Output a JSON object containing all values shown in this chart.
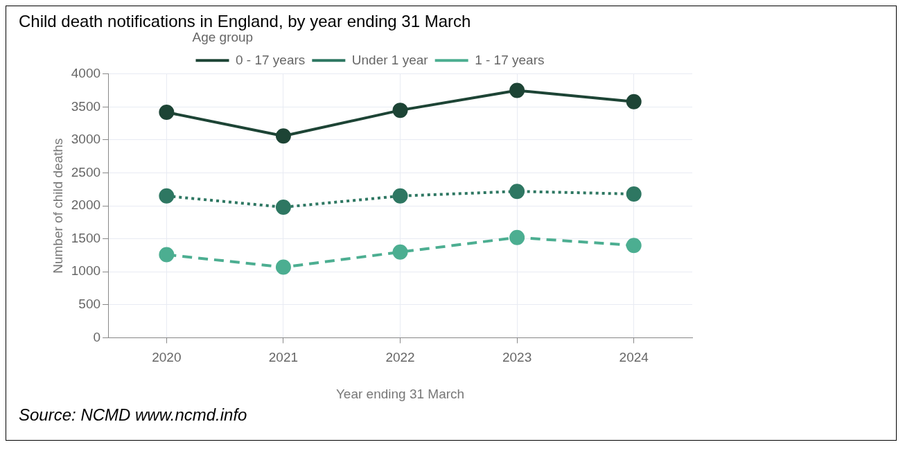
{
  "chart_data": {
    "type": "line",
    "title": "Child death notifications in England, by year ending 31 March",
    "xlabel": "Year ending 31 March",
    "ylabel": "Number of child deaths",
    "legend_title": "Age group",
    "categories": [
      "2020",
      "2021",
      "2022",
      "2023",
      "2024"
    ],
    "series": [
      {
        "name": "0 - 17 years",
        "color": "#1d4435",
        "line_style": "solid",
        "values": [
          3420,
          3060,
          3450,
          3750,
          3580
        ]
      },
      {
        "name": "Under 1 year",
        "color": "#2e7762",
        "line_style": "dotted",
        "values": [
          2150,
          1980,
          2150,
          2220,
          2180
        ]
      },
      {
        "name": "1 - 17 years",
        "color": "#4cae91",
        "line_style": "dashed",
        "values": [
          1260,
          1070,
          1300,
          1520,
          1400
        ]
      }
    ],
    "ylim": [
      0,
      4000
    ],
    "yticks": [
      0,
      500,
      1000,
      1500,
      2000,
      2500,
      3000,
      3500,
      4000
    ],
    "grid": true,
    "legend": "top",
    "marker": "circle",
    "annotations": [
      "Source: NCMD www.ncmd.info"
    ]
  }
}
